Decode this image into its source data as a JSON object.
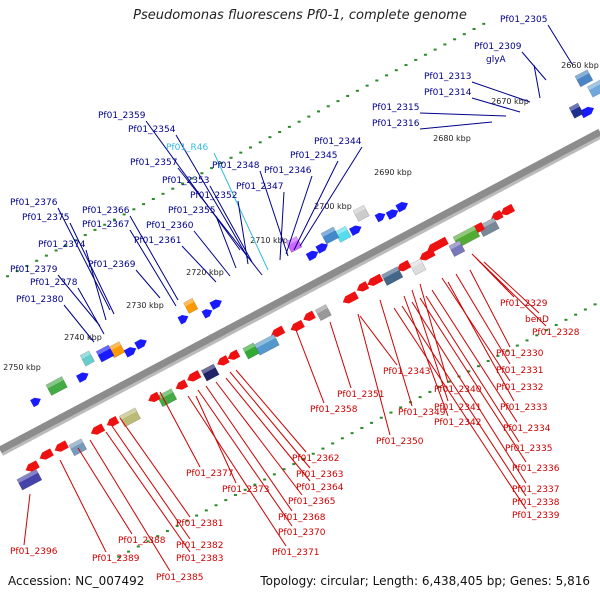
{
  "title": "Pseudomonas fluorescens Pf0-1, complete genome",
  "footer": {
    "accession": "Accession: NC_007492",
    "summary": "Topology: circular; Length: 6,438,405 bp; Genes: 5,816"
  },
  "colors": {
    "forward_label": "#00008b",
    "reverse_label": "#cc0000",
    "rna_label": "#33bbdd",
    "forward_gene": "#1a1aff",
    "reverse_gene": "#ee1111",
    "backbone": "#8c8c8c",
    "tick": "#2a8a2a"
  },
  "kbp_ticks": [
    "2660 kbp",
    "2670 kbp",
    "2680 kbp",
    "2690 kbp",
    "2700 kbp",
    "2710 kbp",
    "2720 kbp",
    "2730 kbp",
    "2740 kbp",
    "2750 kbp"
  ],
  "top_labels": [
    {
      "text": "Pf01_2305",
      "type": "forward"
    },
    {
      "text": "Pf01_2309",
      "type": "forward"
    },
    {
      "text": "glyA",
      "type": "forward"
    },
    {
      "text": "Pf01_2313",
      "type": "forward"
    },
    {
      "text": "Pf01_2314",
      "type": "forward"
    },
    {
      "text": "Pf01_2315",
      "type": "forward"
    },
    {
      "text": "Pf01_2316",
      "type": "forward"
    },
    {
      "text": "Pf01_2359",
      "type": "forward"
    },
    {
      "text": "Pf01_2354",
      "type": "forward"
    },
    {
      "text": "Pf01_R46",
      "type": "rna"
    },
    {
      "text": "Pf01_2357",
      "type": "forward"
    },
    {
      "text": "Pf01_2348",
      "type": "forward"
    },
    {
      "text": "Pf01_2344",
      "type": "forward"
    },
    {
      "text": "Pf01_2345",
      "type": "forward"
    },
    {
      "text": "Pf01_2346",
      "type": "forward"
    },
    {
      "text": "Pf01_2353",
      "type": "forward"
    },
    {
      "text": "Pf01_2347",
      "type": "forward"
    },
    {
      "text": "Pf01_2352",
      "type": "forward"
    },
    {
      "text": "Pf01_2376",
      "type": "forward"
    },
    {
      "text": "Pf01_2375",
      "type": "forward"
    },
    {
      "text": "Pf01_2366",
      "type": "forward"
    },
    {
      "text": "Pf01_2355",
      "type": "forward"
    },
    {
      "text": "Pf01_2367",
      "type": "forward"
    },
    {
      "text": "Pf01_2360",
      "type": "forward"
    },
    {
      "text": "Pf01_2361",
      "type": "forward"
    },
    {
      "text": "Pf01_2374",
      "type": "forward"
    },
    {
      "text": "Pf01_2369",
      "type": "forward"
    },
    {
      "text": "Pf01_2379",
      "type": "forward"
    },
    {
      "text": "Pf01_2378",
      "type": "forward"
    },
    {
      "text": "Pf01_2380",
      "type": "forward"
    }
  ],
  "bottom_labels": [
    {
      "text": "Pf01_2329",
      "type": "reverse"
    },
    {
      "text": "benD",
      "type": "reverse"
    },
    {
      "text": "Pf01_2328",
      "type": "reverse"
    },
    {
      "text": "Pf01_2330",
      "type": "reverse"
    },
    {
      "text": "Pf01_2331",
      "type": "reverse"
    },
    {
      "text": "Pf01_2332",
      "type": "reverse"
    },
    {
      "text": "Pf01_2343",
      "type": "reverse"
    },
    {
      "text": "Pf01_2340",
      "type": "reverse"
    },
    {
      "text": "Pf01_2333",
      "type": "reverse"
    },
    {
      "text": "Pf01_2351",
      "type": "reverse"
    },
    {
      "text": "Pf01_2341",
      "type": "reverse"
    },
    {
      "text": "Pf01_2358",
      "type": "reverse"
    },
    {
      "text": "Pf01_2349",
      "type": "reverse"
    },
    {
      "text": "Pf01_2342",
      "type": "reverse"
    },
    {
      "text": "Pf01_2334",
      "type": "reverse"
    },
    {
      "text": "Pf01_2350",
      "type": "reverse"
    },
    {
      "text": "Pf01_2335",
      "type": "reverse"
    },
    {
      "text": "Pf01_2362",
      "type": "reverse"
    },
    {
      "text": "Pf01_2336",
      "type": "reverse"
    },
    {
      "text": "Pf01_2363",
      "type": "reverse"
    },
    {
      "text": "Pf01_2377",
      "type": "reverse"
    },
    {
      "text": "Pf01_2364",
      "type": "reverse"
    },
    {
      "text": "Pf01_2337",
      "type": "reverse"
    },
    {
      "text": "Pf01_2373",
      "type": "reverse"
    },
    {
      "text": "Pf01_2365",
      "type": "reverse"
    },
    {
      "text": "Pf01_2338",
      "type": "reverse"
    },
    {
      "text": "Pf01_2368",
      "type": "reverse"
    },
    {
      "text": "Pf01_2339",
      "type": "reverse"
    },
    {
      "text": "Pf01_2381",
      "type": "reverse"
    },
    {
      "text": "Pf01_2370",
      "type": "reverse"
    },
    {
      "text": "Pf01_2388",
      "type": "reverse"
    },
    {
      "text": "Pf01_2382",
      "type": "reverse"
    },
    {
      "text": "Pf01_2371",
      "type": "reverse"
    },
    {
      "text": "Pf01_2396",
      "type": "reverse"
    },
    {
      "text": "Pf01_2389",
      "type": "reverse"
    },
    {
      "text": "Pf01_2383",
      "type": "reverse"
    },
    {
      "text": "Pf01_2385",
      "type": "reverse"
    }
  ]
}
